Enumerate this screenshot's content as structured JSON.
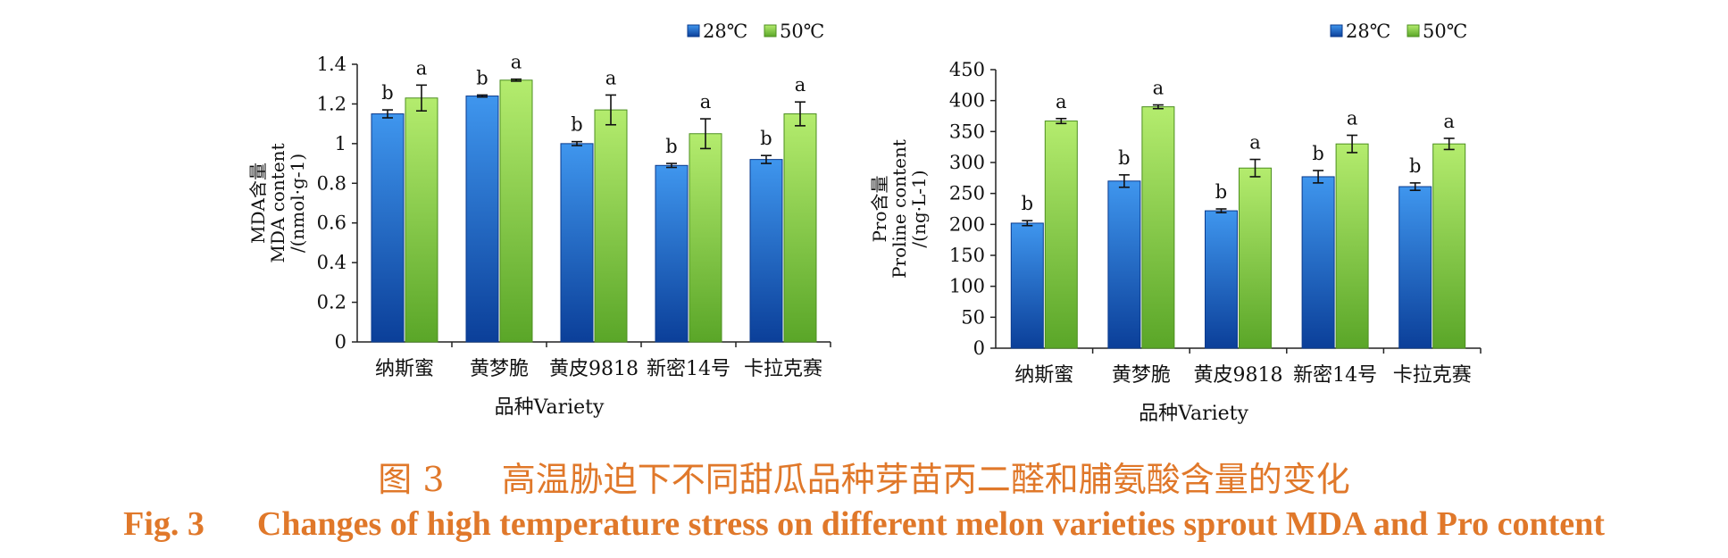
{
  "legend": [
    {
      "label": "28℃",
      "color": "#1f6fc8"
    },
    {
      "label": "50℃",
      "color": "#8ed24a"
    }
  ],
  "colors": {
    "blue_top": "#3f96ee",
    "blue_bottom": "#0b3f99",
    "green_top": "#b4ec6e",
    "green_bottom": "#5aa628",
    "caption": "#e0782a"
  },
  "chart_data": [
    {
      "type": "bar",
      "categories": [
        "纳斯蜜",
        "黄梦脆",
        "黄皮9818",
        "新密14号",
        "卡拉克赛"
      ],
      "ylabel_cn": "MDA含量",
      "ylabel_en": "MDA content",
      "ylabel_unit": "/(nmol·g-1)",
      "xlabel": "品种Variety",
      "ylim": [
        0,
        1.4
      ],
      "yticks": [
        "0",
        "0.2",
        "0.4",
        "0.6",
        "0.8",
        "1",
        "1.2",
        "1.4"
      ],
      "grid": false,
      "legend_position": "top-right",
      "series": [
        {
          "name": "28℃",
          "values": [
            1.15,
            1.24,
            1.0,
            0.89,
            0.92
          ],
          "errors": [
            0.02,
            0.005,
            0.01,
            0.01,
            0.02
          ],
          "letters": [
            "b",
            "b",
            "b",
            "b",
            "b"
          ]
        },
        {
          "name": "50℃",
          "values": [
            1.23,
            1.32,
            1.17,
            1.05,
            1.15
          ],
          "errors": [
            0.065,
            0.005,
            0.075,
            0.075,
            0.06
          ],
          "letters": [
            "a",
            "a",
            "a",
            "a",
            "a"
          ]
        }
      ]
    },
    {
      "type": "bar",
      "categories": [
        "纳斯蜜",
        "黄梦脆",
        "黄皮9818",
        "新密14号",
        "卡拉克赛"
      ],
      "ylabel_cn": "Pro含量",
      "ylabel_en": "Proline content",
      "ylabel_unit": "/(ng·L-1)",
      "xlabel": "品种Variety",
      "ylim": [
        0,
        450
      ],
      "yticks": [
        "0",
        "50",
        "100",
        "150",
        "200",
        "250",
        "300",
        "350",
        "400",
        "450"
      ],
      "grid": false,
      "legend_position": "top-right",
      "series": [
        {
          "name": "28℃",
          "values": [
            202,
            270,
            222,
            277,
            261
          ],
          "errors": [
            4,
            10,
            3,
            10,
            6
          ],
          "letters": [
            "b",
            "b",
            "b",
            "b",
            "b"
          ]
        },
        {
          "name": "50℃",
          "values": [
            367,
            390,
            291,
            330,
            330
          ],
          "errors": [
            4,
            3,
            14,
            14,
            9
          ],
          "letters": [
            "a",
            "a",
            "a",
            "a",
            "a"
          ]
        }
      ]
    }
  ],
  "caption": {
    "cn_label": "图 3",
    "cn_text": "高温胁迫下不同甜瓜品种芽苗丙二醛和脯氨酸含量的变化",
    "en_label": "Fig. 3",
    "en_text": "Changes of high temperature stress on different melon varieties sprout MDA and Pro content"
  }
}
